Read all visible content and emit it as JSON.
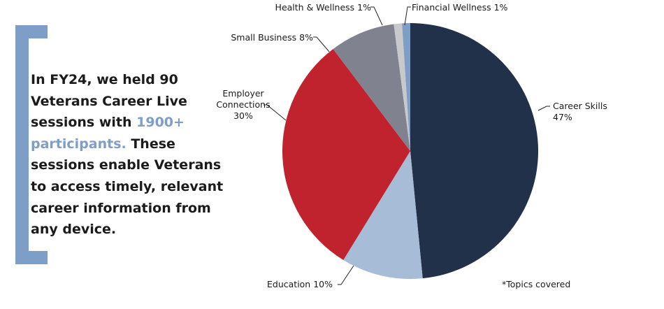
{
  "blurb": {
    "before": "In FY24, we held 90 Veterans Career Live sessions with ",
    "highlight": "1900+ participants.",
    "after": " These sessions enable Veterans to access timely, relevant career information from any device."
  },
  "colors": {
    "accent": "#7d9ec7"
  },
  "chart_data": {
    "type": "pie",
    "title": "",
    "note": "*Topics covered",
    "slices": [
      {
        "name": "Career Skills",
        "value": 47,
        "label_lines": [
          "Career Skills",
          "47%"
        ],
        "color": "#22314a"
      },
      {
        "name": "Education",
        "value": 10,
        "label_lines": [
          "Education 10%"
        ],
        "color": "#a7bcd6"
      },
      {
        "name": "Employer Connections",
        "value": 30,
        "label_lines": [
          "Employer",
          "Connections",
          "30%"
        ],
        "color": "#c1232e"
      },
      {
        "name": "Small Business",
        "value": 8,
        "label_lines": [
          "Small Business 8%"
        ],
        "color": "#80838f"
      },
      {
        "name": "Health & Wellness",
        "value": 1,
        "label_lines": [
          "Health & Wellness 1%"
        ],
        "color": "#c8c9cb"
      },
      {
        "name": "Financial Wellness",
        "value": 1,
        "label_lines": [
          "Financial Wellness 1%"
        ],
        "color": "#7d9ec7"
      }
    ]
  }
}
